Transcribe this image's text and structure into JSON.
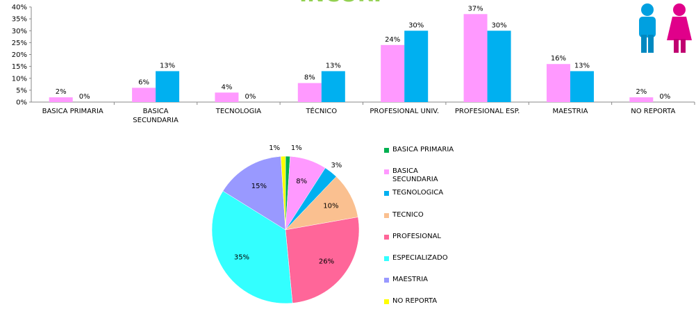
{
  "chart_data": [
    {
      "type": "bar",
      "title": "INCORI",
      "categories": [
        "BASICA PRIMARIA",
        "BASICA SECUNDARIA",
        "TECNOLOGIA",
        "TÉCNICO",
        "PROFESIONAL UNIV.",
        "PROFESIONAL ESP.",
        "MAESTRIA",
        "NO REPORTA"
      ],
      "series": [
        {
          "color": "#ff99ff",
          "values": [
            2,
            6,
            4,
            8,
            24,
            37,
            16,
            2
          ],
          "value_labels": [
            "2%",
            "6%",
            "4%",
            "8%",
            "24%",
            "37%",
            "16%",
            "2%"
          ]
        },
        {
          "color": "#00b0f0",
          "values": [
            0,
            13,
            0,
            13,
            30,
            30,
            13,
            0
          ],
          "value_labels": [
            "0%",
            "13%",
            "0%",
            "13%",
            "30%",
            "30%",
            "13%",
            "0%"
          ]
        }
      ],
      "ylim": [
        0,
        40
      ],
      "yticks": [
        {
          "value": 0,
          "label": "0%"
        },
        {
          "value": 5,
          "label": "5%"
        },
        {
          "value": 10,
          "label": "10%"
        },
        {
          "value": 15,
          "label": "15%"
        },
        {
          "value": 20,
          "label": "20%"
        },
        {
          "value": 25,
          "label": "25%"
        },
        {
          "value": 30,
          "label": "30%"
        },
        {
          "value": 35,
          "label": "35%"
        },
        {
          "value": 40,
          "label": "40%"
        }
      ],
      "grid": false
    },
    {
      "type": "pie",
      "categories": [
        "BASICA PRIMARIA",
        "BASICA SECUNDARIA",
        "TEGNOLOGICA",
        "TECNICO",
        "PROFESIONAL",
        "ESPECIALIZADO",
        "MAESTRIA",
        "NO REPORTA"
      ],
      "values": [
        1,
        8,
        3,
        10,
        26,
        35,
        15,
        1
      ],
      "value_labels": [
        "1%",
        "8%",
        "3%",
        "10%",
        "26%",
        "35%",
        "15%",
        "1%"
      ],
      "colors": [
        "#00b050",
        "#ff99ff",
        "#00b0f0",
        "#fac090",
        "#ff6699",
        "#33ffff",
        "#9999ff",
        "#ffff00"
      ],
      "legend": "right"
    }
  ]
}
